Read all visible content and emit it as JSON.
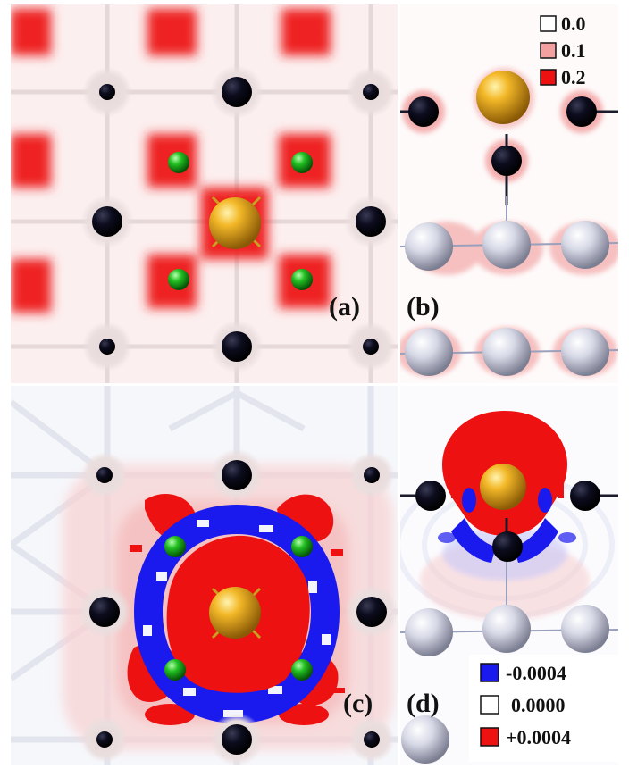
{
  "panels": {
    "a": "(a)",
    "b": "(b)",
    "c": "(c)",
    "d": "(d)"
  },
  "legend_top": [
    {
      "label": "0.0",
      "color": "#ffffff"
    },
    {
      "label": "0.1",
      "color": "#f2a0a0"
    },
    {
      "label": "0.2",
      "color": "#ee1111"
    }
  ],
  "legend_bottom": [
    {
      "label": "-0.0004",
      "color": "#1a1aee"
    },
    {
      "label": "0.0000",
      "color": "#ffffff"
    },
    {
      "label": "+0.0004",
      "color": "#ee1111"
    }
  ],
  "colors": {
    "density_red": "#ee1111",
    "deplete_blue": "#1a1aee",
    "carbon": "#0c0c1e",
    "gold_atom": "#e8a814",
    "green_atom": "#16b016",
    "silver_atom": "#c8cad8"
  }
}
